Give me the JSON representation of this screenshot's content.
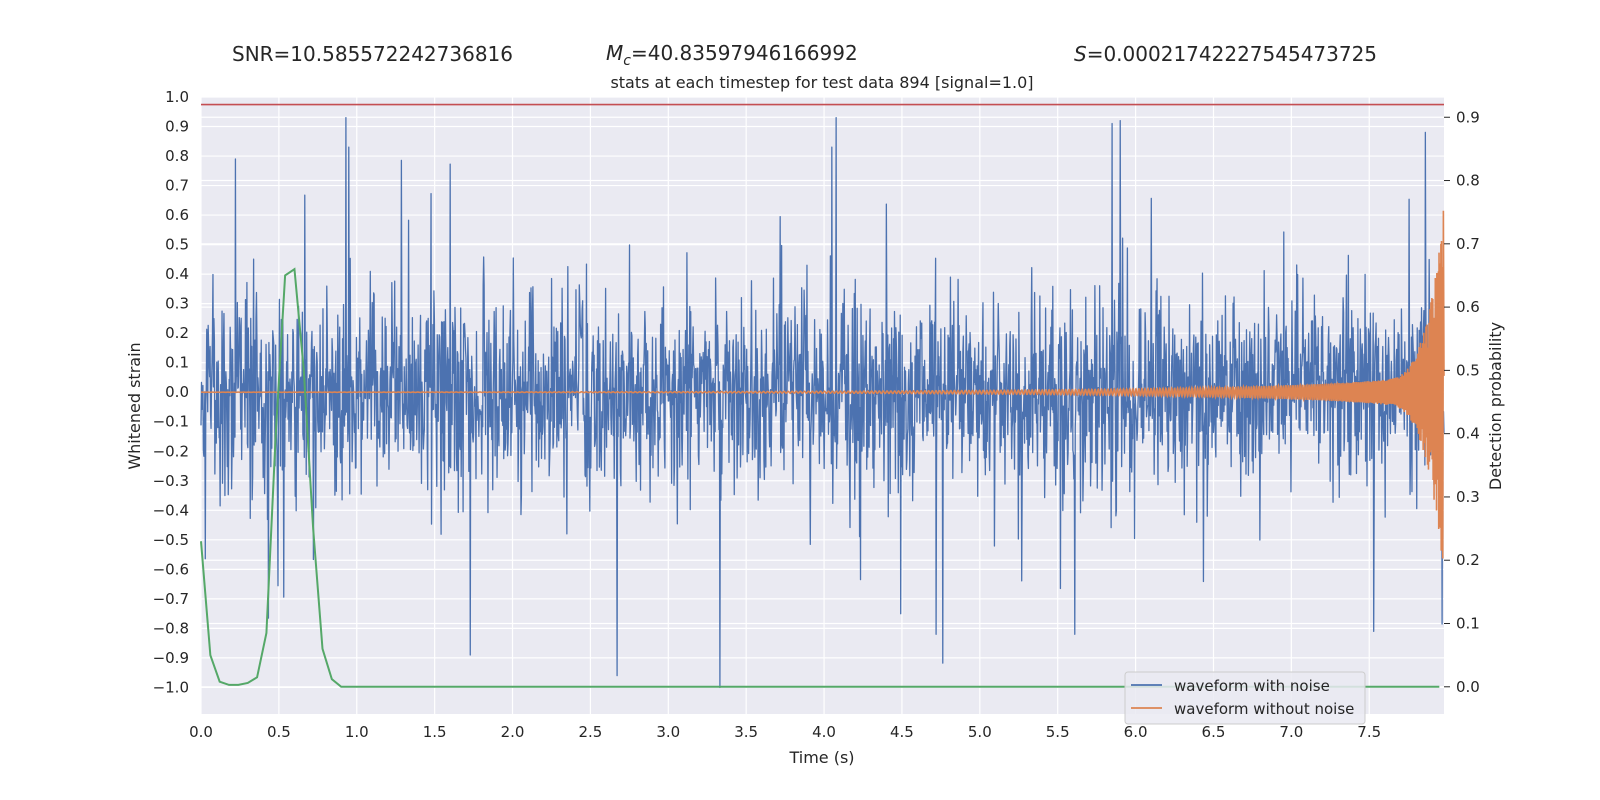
{
  "header": {
    "snr_label": "SNR=10.585572242736816",
    "mc_symbol": "M",
    "mc_subscript": "c",
    "mc_value": "=40.83597946166992",
    "s_symbol": "S",
    "s_value": "=0.00021742227545473725",
    "subtitle": "stats at each timestep for test data 894 [signal=1.0]"
  },
  "chart_data": {
    "type": "line",
    "xlabel": "Time (s)",
    "ylabel": "Whitened strain",
    "y2label": "Detection probability",
    "xlim": [
      0.0,
      7.98
    ],
    "ylim": [
      -1.09,
      1.0
    ],
    "y2lim": [
      -0.043,
      0.932
    ],
    "x_ticks": [
      "0.0",
      "0.5",
      "1.0",
      "1.5",
      "2.0",
      "2.5",
      "3.0",
      "3.5",
      "4.0",
      "4.5",
      "5.0",
      "5.5",
      "6.0",
      "6.5",
      "7.0",
      "7.5"
    ],
    "y_ticks": [
      "1.0",
      "0.9",
      "0.8",
      "0.7",
      "0.6",
      "0.5",
      "0.4",
      "0.3",
      "0.2",
      "0.1",
      "0.0",
      "−0.1",
      "−0.2",
      "−0.3",
      "−0.4",
      "−0.5",
      "−0.6",
      "−0.7",
      "−0.8",
      "−0.9",
      "−1.0"
    ],
    "y2_ticks": [
      "0.9",
      "0.8",
      "0.7",
      "0.6",
      "0.5",
      "0.4",
      "0.3",
      "0.2",
      "0.1",
      "0.0"
    ],
    "threshold": 0.92,
    "grid": true,
    "legend_position": "lower-right",
    "colors": {
      "noise": "#4c72b0",
      "clean": "#dd8452",
      "probability": "#55a868",
      "threshold": "#c44e52",
      "background": "#eaeaf2",
      "grid": "#ffffff"
    },
    "series": [
      {
        "name": "waveform with noise",
        "generated": true,
        "seed": 894,
        "sigma": 0.16,
        "spike_samples": [
          [
            0.22,
            0.79
          ],
          [
            0.95,
            0.83
          ],
          [
            1.73,
            -0.89
          ],
          [
            2.67,
            -0.96
          ],
          [
            3.33,
            -1.0
          ],
          [
            4.05,
            0.83
          ],
          [
            5.61,
            -0.82
          ],
          [
            5.85,
            0.91
          ],
          [
            5.9,
            0.92
          ],
          [
            7.53,
            -0.81
          ],
          [
            7.86,
            0.88
          ],
          [
            4.72,
            -0.82
          ]
        ]
      },
      {
        "name": "waveform without noise",
        "generated": true
      },
      {
        "name": "detection probability",
        "x": [
          0.0,
          0.06,
          0.12,
          0.18,
          0.24,
          0.3,
          0.36,
          0.42,
          0.48,
          0.54,
          0.6,
          0.66,
          0.72,
          0.78,
          0.84,
          0.9,
          7.95
        ],
        "y": [
          0.23,
          0.05,
          0.008,
          0.003,
          0.003,
          0.006,
          0.015,
          0.085,
          0.4,
          0.65,
          0.66,
          0.5,
          0.25,
          0.06,
          0.012,
          0.0,
          0.0
        ]
      }
    ]
  }
}
